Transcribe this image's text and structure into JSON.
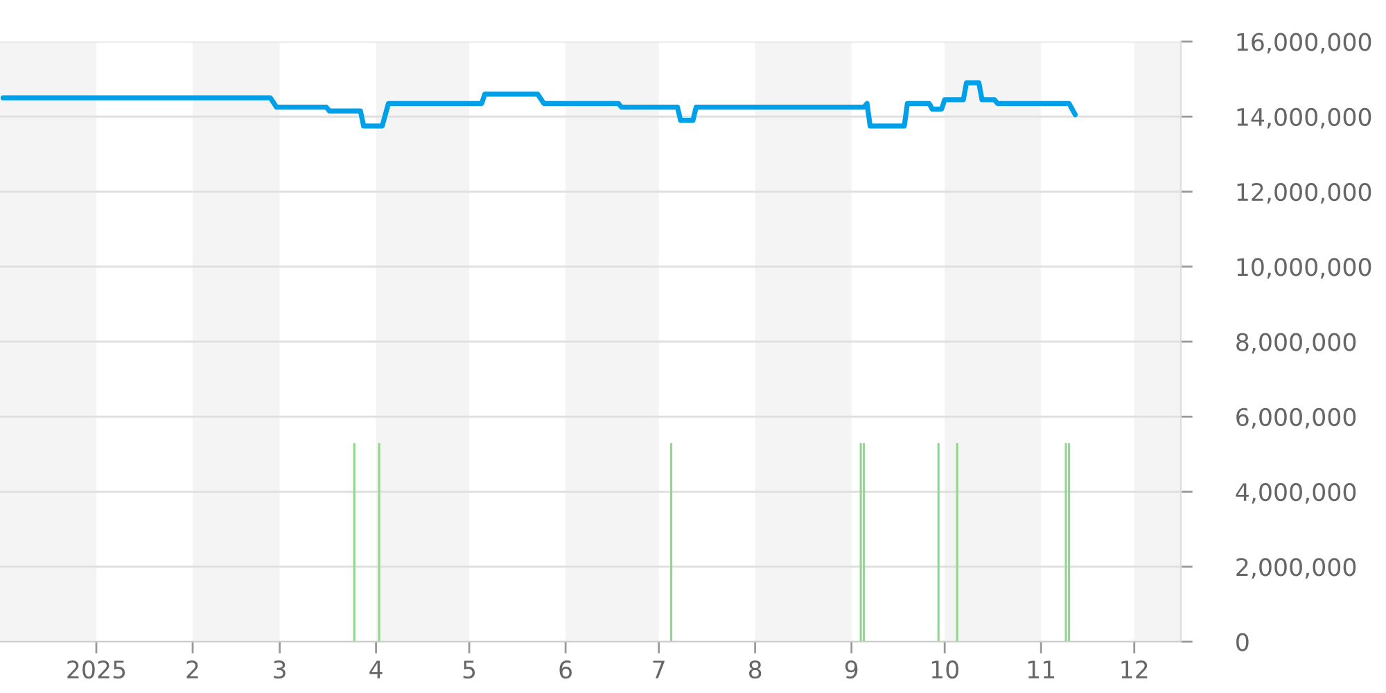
{
  "chart_data": {
    "type": "line",
    "series": [
      {
        "color": "#00a0e9",
        "x": [
          "2024-12-02",
          "2025-02-26",
          "2025-02-28",
          "2025-03-16",
          "2025-03-17",
          "2025-03-27",
          "2025-03-28",
          "2025-04-03",
          "2025-04-05",
          "2025-05-05",
          "2025-05-06",
          "2025-05-23",
          "2025-05-25",
          "2025-06-18",
          "2025-06-19",
          "2025-07-07",
          "2025-07-08",
          "2025-07-12",
          "2025-07-13",
          "2025-09-05",
          "2025-09-06",
          "2025-09-07",
          "2025-09-18",
          "2025-09-19",
          "2025-09-26",
          "2025-09-27",
          "2025-09-30",
          "2025-10-01",
          "2025-10-07",
          "2025-10-08",
          "2025-10-12",
          "2025-10-13",
          "2025-10-17",
          "2025-10-18",
          "2025-11-10",
          "2025-11-12"
        ],
        "values": [
          14500000,
          14500000,
          14250000,
          14250000,
          14150000,
          14150000,
          13750000,
          13750000,
          14350000,
          14350000,
          14600000,
          14600000,
          14350000,
          14350000,
          14250000,
          14250000,
          13900000,
          13900000,
          14250000,
          14250000,
          14350000,
          13750000,
          13750000,
          14350000,
          14350000,
          14200000,
          14200000,
          14450000,
          14450000,
          14900000,
          14900000,
          14450000,
          14450000,
          14350000,
          14350000,
          14050000
        ]
      },
      {
        "type": "bar",
        "color": "#90d890",
        "x": [
          "2025-03-25",
          "2025-04-02",
          "2025-07-05",
          "2025-09-04",
          "2025-09-05",
          "2025-09-29",
          "2025-10-05",
          "2025-11-09",
          "2025-11-10"
        ],
        "values": [
          5300000,
          5300000,
          5300000,
          5300000,
          5300000,
          5300000,
          5300000,
          5300000,
          5300000
        ]
      }
    ],
    "xlim": [
      "2024-12-01",
      "2025-12-16"
    ],
    "xticks": [
      {
        "value": "2025-01-01",
        "label": "2025"
      },
      {
        "value": "2025-02-01",
        "label": "2"
      },
      {
        "value": "2025-03-01",
        "label": "3"
      },
      {
        "value": "2025-04-01",
        "label": "4"
      },
      {
        "value": "2025-05-01",
        "label": "5"
      },
      {
        "value": "2025-06-01",
        "label": "6"
      },
      {
        "value": "2025-07-01",
        "label": "7"
      },
      {
        "value": "2025-08-01",
        "label": "8"
      },
      {
        "value": "2025-09-01",
        "label": "9"
      },
      {
        "value": "2025-10-01",
        "label": "10"
      },
      {
        "value": "2025-11-01",
        "label": "11"
      },
      {
        "value": "2025-12-01",
        "label": "12"
      }
    ],
    "ylim": [
      0,
      16000000
    ],
    "yticks": [
      0,
      {
        "value": 2000000,
        "label": "2,000,000"
      },
      {
        "value": 4000000,
        "label": "4,000,000"
      },
      {
        "value": 6000000,
        "label": "6,000,000"
      },
      {
        "value": 8000000,
        "label": "8,000,000"
      },
      {
        "value": 10000000,
        "label": "10,000,000"
      },
      {
        "value": 12000000,
        "label": "12,000,000"
      },
      {
        "value": 14000000,
        "label": "14,000,000"
      },
      {
        "value": 16000000,
        "label": "16,000,000"
      }
    ],
    "bands": [
      {
        "axis": "x",
        "from": "2024-12-01",
        "to": "2025-01-01",
        "color": "#f4f4f4"
      },
      {
        "axis": "x",
        "from": "2025-02-01",
        "to": "2025-03-01",
        "color": "#f4f4f4"
      },
      {
        "axis": "x",
        "from": "2025-04-01",
        "to": "2025-05-01",
        "color": "#f4f4f4"
      },
      {
        "axis": "x",
        "from": "2025-06-01",
        "to": "2025-07-01",
        "color": "#f4f4f4"
      },
      {
        "axis": "x",
        "from": "2025-08-01",
        "to": "2025-09-01",
        "color": "#f4f4f4"
      },
      {
        "axis": "x",
        "from": "2025-10-01",
        "to": "2025-11-01",
        "color": "#f4f4f4"
      },
      {
        "axis": "x",
        "from": "2025-12-01",
        "to": "2025-12-16",
        "color": "#f4f4f4"
      }
    ],
    "grid": "y"
  }
}
